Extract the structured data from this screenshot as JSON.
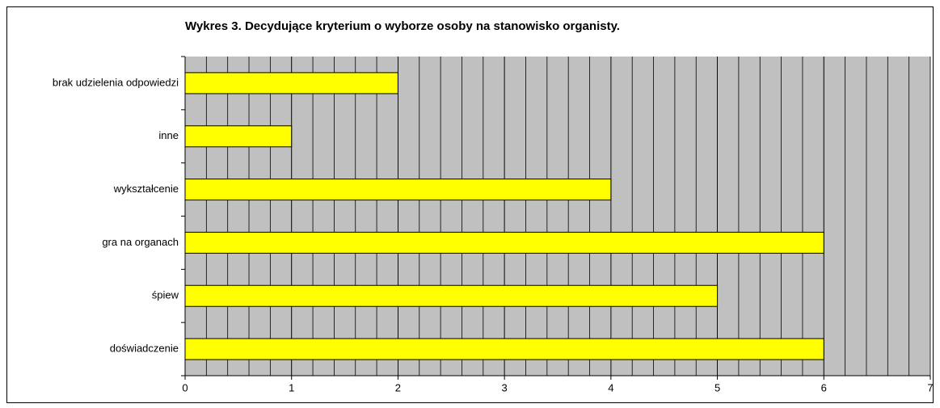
{
  "chart_data": {
    "type": "hbar",
    "title": "Wykres 3. Decydujące kryterium o wyborze osoby na stanowisko organisty.",
    "categories": [
      "brak udzielenia odpowiedzi",
      "inne",
      "wykształcenie",
      "gra na organach",
      "śpiew",
      "doświadczenie"
    ],
    "values": [
      2,
      1,
      4,
      6,
      5,
      6
    ],
    "color": "#ffff00",
    "plot_background": "#c0c0c0",
    "xlim": [
      0,
      7
    ],
    "xticks": [
      0,
      1,
      2,
      3,
      4,
      5,
      6,
      7
    ],
    "grid": true,
    "minor_grid_step": 0.2
  }
}
